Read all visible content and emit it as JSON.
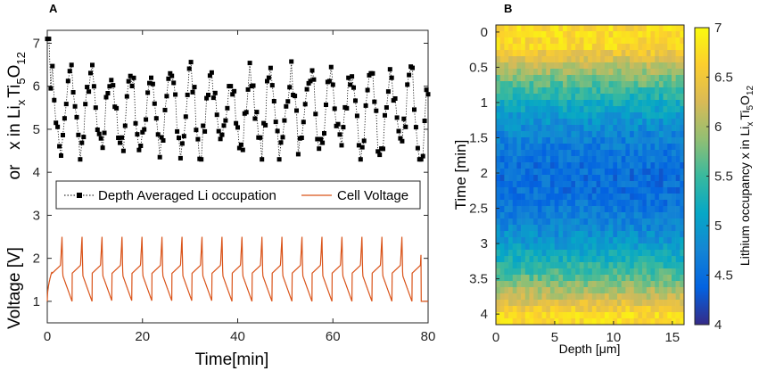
{
  "chart_data": [
    {
      "panel": "A",
      "type": "line",
      "xlabel": "Time[min]",
      "ylabel_parts": {
        "top": "x in Li",
        "top_sub1": "x",
        "top_mid": "Ti",
        "top_sub2": "5",
        "top_end": "O",
        "top_sub3": "12",
        "or": "or",
        "bottom": "Voltage [V]"
      },
      "xlim": [
        0,
        80
      ],
      "ylim": [
        0.5,
        7.3
      ],
      "xticks": [
        "0",
        "20",
        "40",
        "60",
        "80"
      ],
      "xtick_values": [
        0,
        20,
        40,
        60,
        80
      ],
      "yticks": [
        "1",
        "2",
        "3",
        "4",
        "5",
        "6",
        "7"
      ],
      "ytick_values": [
        1,
        2,
        3,
        4,
        5,
        6,
        7
      ],
      "legend": {
        "items": [
          "Depth Averaged Li occupation",
          "Cell Voltage"
        ],
        "placement": "center"
      },
      "series": [
        {
          "name": "Depth Averaged Li occupation",
          "style": "dotted line with square markers",
          "color": "#000000",
          "cycles": 19,
          "period_min": 4.2,
          "range": [
            4.3,
            6.6
          ],
          "start": 7.1
        },
        {
          "name": "Cell Voltage",
          "style": "solid",
          "color": "#d95319",
          "cycles": 19,
          "period_min": 4.2,
          "range": [
            1.0,
            2.5
          ]
        }
      ]
    },
    {
      "panel": "B",
      "type": "heatmap",
      "xlabel": "Depth [μm]",
      "ylabel": "Time [min]",
      "xlim": [
        0,
        16
      ],
      "ylim": [
        4.15,
        -0.1
      ],
      "xticks": [
        "0",
        "5",
        "10",
        "15"
      ],
      "xtick_values": [
        0,
        5,
        10,
        15
      ],
      "yticks": [
        "0",
        "0.5",
        "1",
        "1.5",
        "2",
        "2.5",
        "3",
        "3.5",
        "4"
      ],
      "ytick_values": [
        0,
        0.5,
        1,
        1.5,
        2,
        2.5,
        3,
        3.5,
        4
      ],
      "colorbar": {
        "label_parts": {
          "main": "Lithium occupancy x in Li",
          "sub1": "x",
          "mid": "Ti",
          "sub2": "5",
          "end": "O",
          "sub3": "12"
        },
        "range": [
          4,
          7
        ],
        "ticks": [
          "4",
          "4.5",
          "5",
          "5.5",
          "6",
          "6.5",
          "7"
        ],
        "tick_values": [
          4,
          4.5,
          5,
          5.5,
          6,
          6.5,
          7
        ],
        "colormap": "parula"
      },
      "grid_cols": 45,
      "grid_rows": 48,
      "profile": {
        "top_value": 6.7,
        "min_value": 4.5,
        "min_time": 2.1,
        "bottom_value": 6.7
      }
    }
  ]
}
